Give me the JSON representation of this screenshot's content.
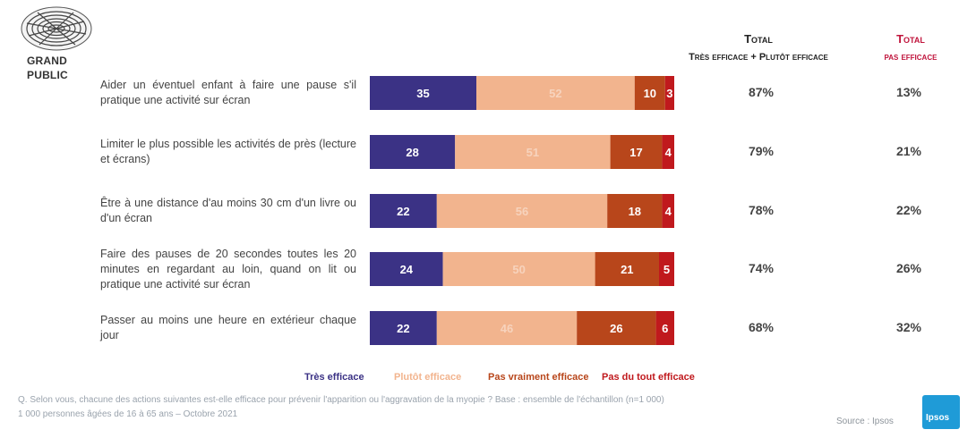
{
  "header": {
    "brand_label_1": "GRAND",
    "brand_label_2": "PUBLIC",
    "total_title": "Total",
    "total_sub": "Très efficace + Plutôt efficace",
    "inefficace_title": "Total",
    "inefficace_sub": "pas efficace"
  },
  "chart_data": {
    "type": "bar",
    "stacked": true,
    "orientation": "horizontal",
    "categories": [
      "Aider un éventuel enfant à faire une pause s'il pratique une activité sur écran",
      "Limiter le plus possible les activités de près (lecture et écrans)",
      "Être à une distance d'au moins 30 cm d'un livre ou d'un écran",
      "Faire des pauses de 20 secondes toutes les 20 minutes en regardant au loin, quand on lit ou pratique une activité sur écran",
      "Passer au moins une heure en extérieur chaque jour"
    ],
    "series": [
      {
        "name": "Très efficace",
        "color": "#3b3285",
        "values": [
          35,
          28,
          22,
          24,
          22
        ]
      },
      {
        "name": "Plutôt efficace",
        "color": "#f2b48e",
        "values": [
          52,
          51,
          56,
          50,
          46
        ]
      },
      {
        "name": "Pas vraiment efficace",
        "color": "#b8461b",
        "values": [
          10,
          17,
          18,
          21,
          26
        ]
      },
      {
        "name": "Pas du tout efficace",
        "color": "#c0191d",
        "values": [
          3,
          4,
          4,
          5,
          6
        ]
      }
    ],
    "totals_efficace": [
      "87%",
      "79%",
      "78%",
      "74%",
      "68%"
    ],
    "totals_pas_efficace": [
      "13%",
      "21%",
      "22%",
      "26%",
      "32%"
    ],
    "xlim": [
      0,
      100
    ]
  },
  "legend": [
    "Très efficace",
    "Plutôt efficace",
    "Pas vraiment efficace",
    "Pas du tout efficace"
  ],
  "footnote_line1": "Q. Selon vous, chacune des actions suivantes est-elle efficace pour prévenir l'apparition ou l'aggravation de la myopie ? Base : ensemble de l'échantillon (n=1 000)",
  "footnote_line2": "1 000 personnes âgées de 16 à 65 ans – Octobre 2021",
  "source": "Source : Ipsos",
  "logo_text": "Ipsos"
}
